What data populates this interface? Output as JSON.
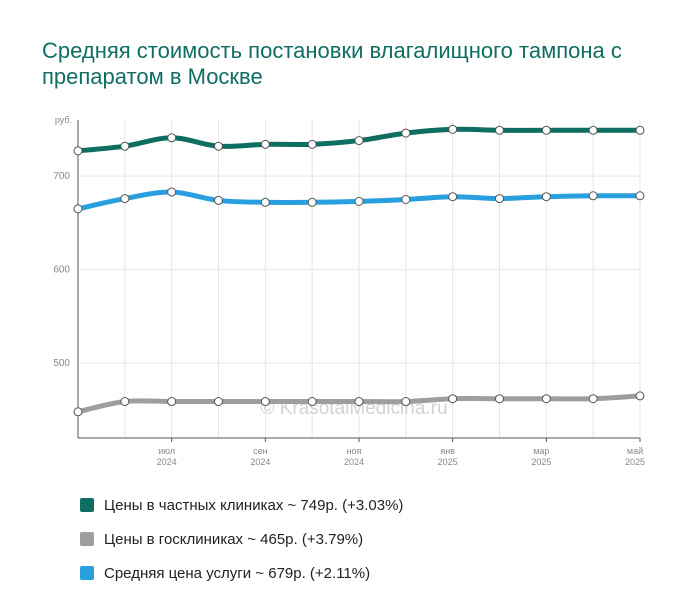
{
  "title": "Средняя стоимость постановки влагалищного тампона с препаратом в Москве",
  "watermark": "© KrasotaiMedicina.ru",
  "chart_data": {
    "type": "line",
    "y_unit": "руб.",
    "ylim": [
      420,
      760
    ],
    "yticks": [
      500,
      600,
      700
    ],
    "grid": true,
    "x": [
      "2024-05",
      "2024-06",
      "2024-07",
      "2024-08",
      "2024-09",
      "2024-10",
      "2024-11",
      "2024-12",
      "2025-01",
      "2025-02",
      "2025-03",
      "2025-04",
      "2025-05"
    ],
    "xticks": [
      {
        "month": "июл",
        "year": "2024",
        "x": "2024-07"
      },
      {
        "month": "сен",
        "year": "2024",
        "x": "2024-09"
      },
      {
        "month": "ноя",
        "year": "2024",
        "x": "2024-11"
      },
      {
        "month": "янв",
        "year": "2025",
        "x": "2025-01"
      },
      {
        "month": "мар",
        "year": "2025",
        "x": "2025-03"
      },
      {
        "month": "май",
        "year": "2025",
        "x": "2025-05"
      }
    ],
    "series": [
      {
        "name": "Цены в частных клиниках ~ 749р. (+3.03%)",
        "color": "#0e6e62",
        "values": [
          727,
          732,
          741,
          732,
          734,
          734,
          738,
          746,
          750,
          749,
          749,
          749,
          749
        ]
      },
      {
        "name": "Цены в госклиниках ~ 465р. (+3.79%)",
        "color": "#9e9e9e",
        "values": [
          448,
          459,
          459,
          459,
          459,
          459,
          459,
          459,
          462,
          462,
          462,
          462,
          465
        ]
      },
      {
        "name": "Средняя цена услуги ~ 679р. (+2.11%)",
        "color": "#2a9fe0",
        "values": [
          665,
          676,
          683,
          674,
          672,
          672,
          673,
          675,
          678,
          676,
          678,
          679,
          679
        ]
      }
    ],
    "legend_position": "bottom"
  }
}
